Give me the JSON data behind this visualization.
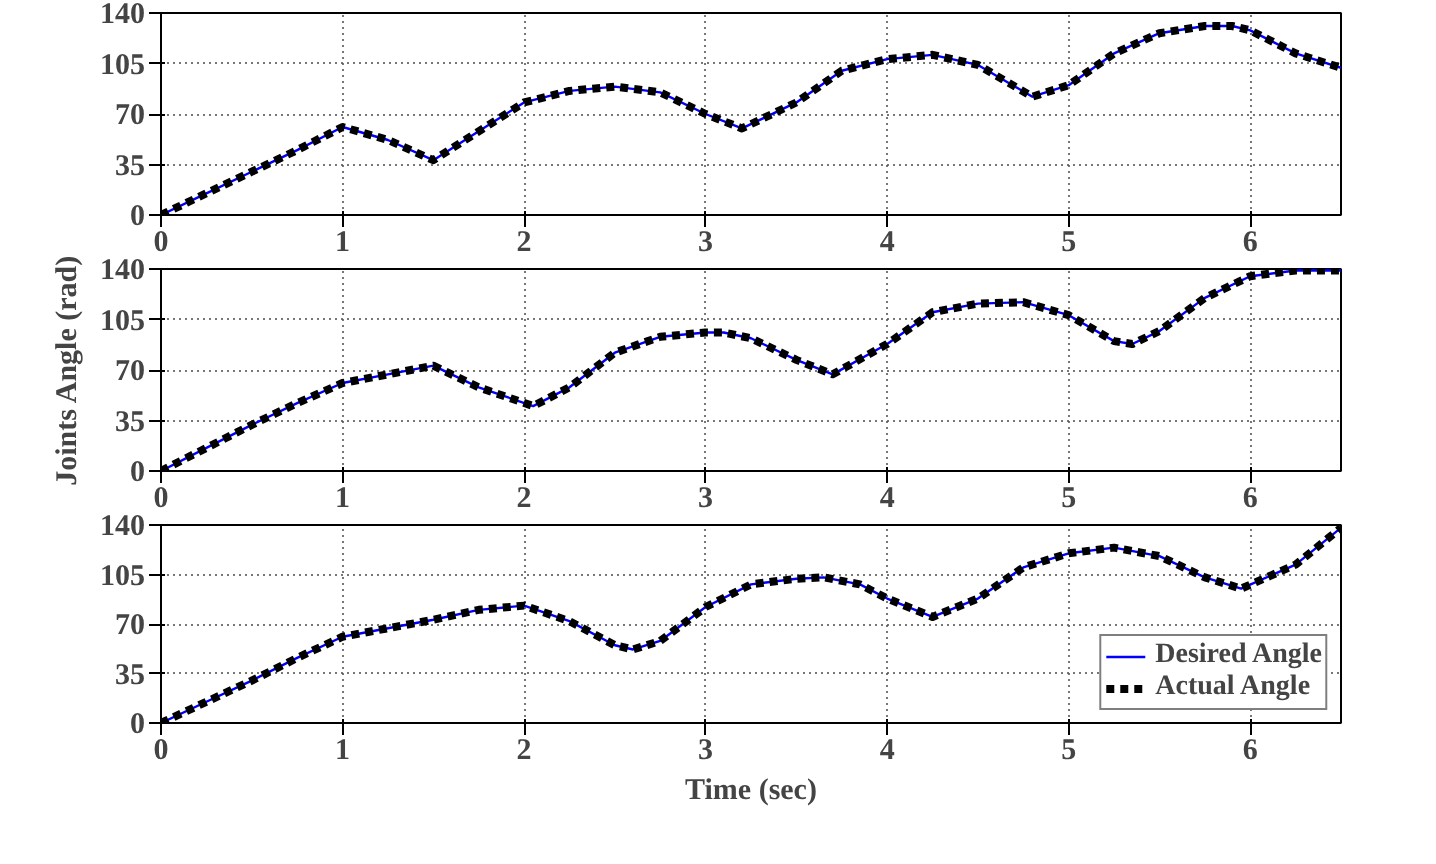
{
  "chart_data": [
    {
      "type": "line",
      "xlim": [
        0,
        6.5
      ],
      "xticks": [
        0,
        1,
        2,
        3,
        4,
        5,
        6
      ],
      "ylim": [
        0,
        140
      ],
      "yticks": [
        0,
        35,
        70,
        105,
        140
      ],
      "grid": true,
      "legend": false,
      "x": [
        0,
        0.25,
        0.5,
        0.75,
        1,
        1.25,
        1.5,
        1.75,
        2,
        2.25,
        2.5,
        2.75,
        3,
        3.2,
        3.5,
        3.75,
        4,
        4.25,
        4.5,
        4.8,
        5,
        5.25,
        5.5,
        5.75,
        5.9,
        6,
        6.25,
        6.5
      ],
      "series": [
        {
          "color": "#0000ff",
          "line_style": "solid",
          "values": [
            0,
            15,
            30,
            45,
            61,
            52,
            38,
            58,
            78,
            86,
            89,
            85,
            70,
            60,
            78,
            100,
            108,
            111,
            104,
            82,
            90,
            112,
            126,
            131,
            131,
            128,
            112,
            102
          ]
        },
        {
          "color": "#000000",
          "line_style": "dashed",
          "values": [
            0,
            15,
            30,
            45,
            61,
            52,
            38,
            58,
            78,
            86,
            89,
            85,
            70,
            60,
            78,
            100,
            108,
            111,
            104,
            82,
            90,
            112,
            126,
            131,
            131,
            128,
            112,
            102
          ]
        }
      ]
    },
    {
      "type": "line",
      "ylabel": "Joints Angle (rad)",
      "xlim": [
        0,
        6.5
      ],
      "xticks": [
        0,
        1,
        2,
        3,
        4,
        5,
        6
      ],
      "ylim": [
        0,
        140
      ],
      "yticks": [
        0,
        35,
        70,
        105,
        140
      ],
      "grid": true,
      "legend": false,
      "x": [
        0,
        0.25,
        0.5,
        0.75,
        1,
        1.25,
        1.5,
        1.75,
        2.05,
        2.25,
        2.5,
        2.75,
        3,
        3.1,
        3.25,
        3.5,
        3.7,
        4,
        4.25,
        4.5,
        4.75,
        5,
        5.25,
        5.35,
        5.5,
        5.75,
        6,
        6.25,
        6.5
      ],
      "series": [
        {
          "color": "#0000ff",
          "line_style": "solid",
          "values": [
            0,
            16,
            32,
            47,
            61,
            67,
            73,
            58,
            45,
            58,
            82,
            93,
            96,
            96,
            92,
            77,
            67,
            88,
            110,
            116,
            117,
            108,
            90,
            88,
            97,
            120,
            135,
            139,
            139
          ]
        },
        {
          "color": "#000000",
          "line_style": "dashed",
          "values": [
            0,
            16,
            32,
            47,
            61,
            67,
            73,
            58,
            45,
            58,
            82,
            93,
            96,
            96,
            92,
            77,
            67,
            88,
            110,
            116,
            117,
            108,
            90,
            88,
            97,
            120,
            135,
            139,
            139
          ]
        }
      ]
    },
    {
      "type": "line",
      "xlabel": "Time (sec)",
      "xlim": [
        0,
        6.5
      ],
      "xticks": [
        0,
        1,
        2,
        3,
        4,
        5,
        6
      ],
      "ylim": [
        0,
        140
      ],
      "yticks": [
        0,
        35,
        70,
        105,
        140
      ],
      "grid": true,
      "legend": "bottom right",
      "x": [
        0,
        0.25,
        0.5,
        0.75,
        1,
        1.25,
        1.5,
        1.75,
        2,
        2.25,
        2.5,
        2.6,
        2.75,
        3,
        3.25,
        3.5,
        3.65,
        3.85,
        4,
        4.25,
        4.5,
        4.75,
        5,
        5.25,
        5.5,
        5.75,
        5.95,
        6.25,
        6.5
      ],
      "series": [
        {
          "name": "Desired Angle",
          "color": "#0000ff",
          "line_style": "solid",
          "values": [
            0,
            15,
            30,
            46,
            61,
            67,
            73,
            80,
            83,
            72,
            55,
            52,
            58,
            82,
            98,
            102,
            103,
            98,
            88,
            75,
            88,
            110,
            120,
            124,
            118,
            103,
            95,
            112,
            138
          ]
        },
        {
          "name": "Actual Angle",
          "color": "#000000",
          "line_style": "dashed",
          "values": [
            0,
            15,
            30,
            46,
            61,
            67,
            73,
            80,
            83,
            72,
            55,
            52,
            58,
            82,
            98,
            102,
            103,
            98,
            88,
            75,
            88,
            110,
            120,
            124,
            118,
            103,
            95,
            112,
            138
          ]
        }
      ]
    }
  ]
}
